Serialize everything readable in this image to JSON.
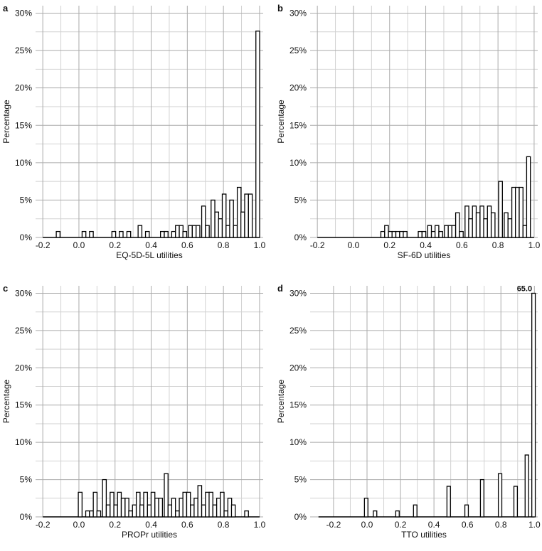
{
  "chart_data": [
    {
      "type": "bar",
      "panel": "a",
      "xlabel": "EQ-5D-5L utilities",
      "ylabel": "Percentage",
      "xlim": [
        -0.24,
        1.02
      ],
      "ylim": [
        0,
        31
      ],
      "xticks": [
        -0.2,
        0.0,
        0.2,
        0.4,
        0.6,
        0.8,
        1.0
      ],
      "xtick_labels": [
        "-0.2",
        "0.0",
        "0.2",
        "0.4",
        "0.6",
        "0.8",
        "1.0"
      ],
      "yticks": [
        0,
        5,
        10,
        15,
        20,
        25,
        30
      ],
      "ytick_labels": [
        "0%",
        "5%",
        "10%",
        "15%",
        "20%",
        "25%",
        "30%"
      ],
      "bin_width": 0.0208,
      "bins": [
        {
          "x": -0.115,
          "y": 0.8
        },
        {
          "x": 0.028,
          "y": 0.8
        },
        {
          "x": 0.069,
          "y": 0.8
        },
        {
          "x": 0.193,
          "y": 0.8
        },
        {
          "x": 0.234,
          "y": 0.8
        },
        {
          "x": 0.276,
          "y": 0.8
        },
        {
          "x": 0.338,
          "y": 1.6
        },
        {
          "x": 0.379,
          "y": 0.8
        },
        {
          "x": 0.462,
          "y": 0.8
        },
        {
          "x": 0.483,
          "y": 0.8
        },
        {
          "x": 0.524,
          "y": 0.8
        },
        {
          "x": 0.545,
          "y": 1.6
        },
        {
          "x": 0.566,
          "y": 1.6
        },
        {
          "x": 0.586,
          "y": 0.8
        },
        {
          "x": 0.617,
          "y": 1.6
        },
        {
          "x": 0.638,
          "y": 1.6
        },
        {
          "x": 0.659,
          "y": 1.6
        },
        {
          "x": 0.69,
          "y": 4.2
        },
        {
          "x": 0.711,
          "y": 1.6
        },
        {
          "x": 0.742,
          "y": 5.0
        },
        {
          "x": 0.763,
          "y": 3.4
        },
        {
          "x": 0.783,
          "y": 2.5
        },
        {
          "x": 0.804,
          "y": 5.8
        },
        {
          "x": 0.825,
          "y": 1.6
        },
        {
          "x": 0.845,
          "y": 5.0
        },
        {
          "x": 0.866,
          "y": 1.6
        },
        {
          "x": 0.887,
          "y": 6.7
        },
        {
          "x": 0.907,
          "y": 3.4
        },
        {
          "x": 0.928,
          "y": 5.8
        },
        {
          "x": 0.949,
          "y": 5.8
        },
        {
          "x": 0.99,
          "y": 27.6
        }
      ]
    },
    {
      "type": "bar",
      "panel": "b",
      "xlabel": "SF-6D utilities",
      "ylabel": "Percentage",
      "xlim": [
        -0.24,
        1.02
      ],
      "ylim": [
        0,
        31
      ],
      "xticks": [
        -0.2,
        0.0,
        0.2,
        0.4,
        0.6,
        0.8,
        1.0
      ],
      "xtick_labels": [
        "-0.2",
        "0.0",
        "0.2",
        "0.4",
        "0.6",
        "0.8",
        "1.0"
      ],
      "yticks": [
        0,
        5,
        10,
        15,
        20,
        25,
        30
      ],
      "ytick_labels": [
        "0%",
        "5%",
        "10%",
        "15%",
        "20%",
        "25%",
        "30%"
      ],
      "bin_width": 0.0208,
      "bins": [
        {
          "x": 0.162,
          "y": 0.8
        },
        {
          "x": 0.183,
          "y": 1.6
        },
        {
          "x": 0.204,
          "y": 0.8
        },
        {
          "x": 0.224,
          "y": 0.8
        },
        {
          "x": 0.245,
          "y": 0.8
        },
        {
          "x": 0.266,
          "y": 0.8
        },
        {
          "x": 0.286,
          "y": 0.8
        },
        {
          "x": 0.369,
          "y": 0.8
        },
        {
          "x": 0.39,
          "y": 0.8
        },
        {
          "x": 0.421,
          "y": 1.6
        },
        {
          "x": 0.442,
          "y": 0.8
        },
        {
          "x": 0.462,
          "y": 1.6
        },
        {
          "x": 0.483,
          "y": 0.8
        },
        {
          "x": 0.514,
          "y": 1.6
        },
        {
          "x": 0.535,
          "y": 1.6
        },
        {
          "x": 0.555,
          "y": 1.6
        },
        {
          "x": 0.576,
          "y": 3.3
        },
        {
          "x": 0.597,
          "y": 0.8
        },
        {
          "x": 0.628,
          "y": 4.2
        },
        {
          "x": 0.648,
          "y": 2.5
        },
        {
          "x": 0.669,
          "y": 4.2
        },
        {
          "x": 0.69,
          "y": 3.3
        },
        {
          "x": 0.711,
          "y": 4.2
        },
        {
          "x": 0.731,
          "y": 2.5
        },
        {
          "x": 0.752,
          "y": 4.2
        },
        {
          "x": 0.773,
          "y": 3.3
        },
        {
          "x": 0.814,
          "y": 7.5
        },
        {
          "x": 0.845,
          "y": 3.3
        },
        {
          "x": 0.866,
          "y": 2.5
        },
        {
          "x": 0.887,
          "y": 6.7
        },
        {
          "x": 0.907,
          "y": 6.7
        },
        {
          "x": 0.928,
          "y": 6.7
        },
        {
          "x": 0.949,
          "y": 1.6
        },
        {
          "x": 0.969,
          "y": 10.8
        }
      ]
    },
    {
      "type": "bar",
      "panel": "c",
      "xlabel": "PROPr utilities",
      "ylabel": "Percentage",
      "xlim": [
        -0.24,
        1.02
      ],
      "ylim": [
        0,
        31
      ],
      "xticks": [
        -0.2,
        0.0,
        0.2,
        0.4,
        0.6,
        0.8,
        1.0
      ],
      "xtick_labels": [
        "-0.2",
        "0.0",
        "0.2",
        "0.4",
        "0.6",
        "0.8",
        "1.0"
      ],
      "yticks": [
        0,
        5,
        10,
        15,
        20,
        25,
        30
      ],
      "ytick_labels": [
        "0%",
        "5%",
        "10%",
        "15%",
        "20%",
        "25%",
        "30%"
      ],
      "bin_width": 0.0208,
      "bins": [
        {
          "x": 0.007,
          "y": 3.3
        },
        {
          "x": 0.048,
          "y": 0.8
        },
        {
          "x": 0.069,
          "y": 0.8
        },
        {
          "x": 0.09,
          "y": 3.3
        },
        {
          "x": 0.11,
          "y": 0.8
        },
        {
          "x": 0.141,
          "y": 5.0
        },
        {
          "x": 0.162,
          "y": 1.6
        },
        {
          "x": 0.183,
          "y": 3.3
        },
        {
          "x": 0.204,
          "y": 1.6
        },
        {
          "x": 0.224,
          "y": 3.3
        },
        {
          "x": 0.245,
          "y": 2.5
        },
        {
          "x": 0.266,
          "y": 2.5
        },
        {
          "x": 0.286,
          "y": 0.8
        },
        {
          "x": 0.307,
          "y": 1.6
        },
        {
          "x": 0.328,
          "y": 3.3
        },
        {
          "x": 0.348,
          "y": 1.6
        },
        {
          "x": 0.369,
          "y": 3.3
        },
        {
          "x": 0.39,
          "y": 1.6
        },
        {
          "x": 0.41,
          "y": 3.3
        },
        {
          "x": 0.431,
          "y": 2.5
        },
        {
          "x": 0.452,
          "y": 2.5
        },
        {
          "x": 0.483,
          "y": 5.8
        },
        {
          "x": 0.504,
          "y": 1.6
        },
        {
          "x": 0.524,
          "y": 2.5
        },
        {
          "x": 0.545,
          "y": 0.8
        },
        {
          "x": 0.566,
          "y": 2.5
        },
        {
          "x": 0.586,
          "y": 3.3
        },
        {
          "x": 0.607,
          "y": 3.3
        },
        {
          "x": 0.628,
          "y": 1.6
        },
        {
          "x": 0.648,
          "y": 2.5
        },
        {
          "x": 0.669,
          "y": 4.2
        },
        {
          "x": 0.69,
          "y": 1.6
        },
        {
          "x": 0.711,
          "y": 3.3
        },
        {
          "x": 0.731,
          "y": 3.3
        },
        {
          "x": 0.752,
          "y": 1.6
        },
        {
          "x": 0.773,
          "y": 2.5
        },
        {
          "x": 0.793,
          "y": 3.3
        },
        {
          "x": 0.814,
          "y": 0.8
        },
        {
          "x": 0.835,
          "y": 2.5
        },
        {
          "x": 0.855,
          "y": 1.6
        },
        {
          "x": 0.928,
          "y": 0.8
        }
      ]
    },
    {
      "type": "bar",
      "panel": "d",
      "xlabel": "TTO utilities",
      "ylabel": "Percentage",
      "xlim": [
        -0.34,
        1.02
      ],
      "ylim": [
        0,
        31
      ],
      "xticks": [
        -0.2,
        0.0,
        0.2,
        0.4,
        0.6,
        0.8,
        1.0
      ],
      "xtick_labels": [
        "-0.2",
        "0.0",
        "0.2",
        "0.4",
        "0.6",
        "0.8",
        "1.0"
      ],
      "yticks": [
        0,
        5,
        10,
        15,
        20,
        25,
        30
      ],
      "ytick_labels": [
        "0%",
        "5%",
        "10%",
        "15%",
        "20%",
        "25%",
        "30%"
      ],
      "bin_width": 0.0208,
      "bins": [
        {
          "x": -0.005,
          "y": 2.5
        },
        {
          "x": 0.048,
          "y": 0.8
        },
        {
          "x": 0.182,
          "y": 0.8
        },
        {
          "x": 0.288,
          "y": 1.6
        },
        {
          "x": 0.488,
          "y": 4.1
        },
        {
          "x": 0.595,
          "y": 1.6
        },
        {
          "x": 0.688,
          "y": 5.0
        },
        {
          "x": 0.795,
          "y": 5.8
        },
        {
          "x": 0.888,
          "y": 4.1
        },
        {
          "x": 0.955,
          "y": 8.3
        },
        {
          "x": 0.995,
          "y": 30.0
        }
      ],
      "annotation": {
        "x": 0.995,
        "y": 30.0,
        "text": "65.0"
      }
    }
  ]
}
